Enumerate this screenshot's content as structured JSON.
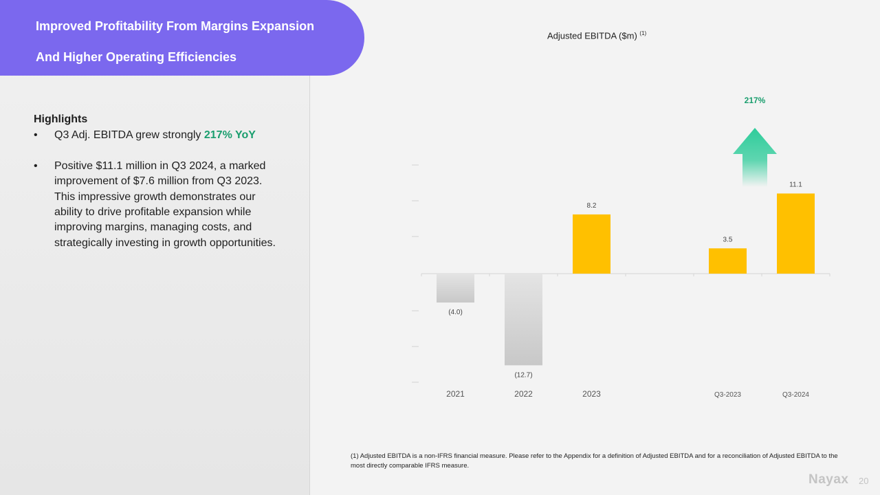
{
  "slide": {
    "title_line1": "Improved Profitability From Margins Expansion",
    "title_line2": "And Higher Operating Efficiencies",
    "highlights_heading": "Highlights",
    "bullet_symbol": "•",
    "bullet1_text": "Q3 Adj. EBITDA grew strongly ",
    "bullet1_emphasis": "217% YoY",
    "bullet2_text": "Positive $11.1 million in Q3 2024, a marked improvement of $7.6 million from Q3 2023. This impressive growth demonstrates our ability to drive profitable expansion while improving margins, managing costs, and strategically investing in growth opportunities.",
    "footnote": "(1) Adjusted EBITDA is a non-IFRS financial measure. Please refer to the Appendix for a definition of Adjusted EBITDA and for a reconciliation of Adjusted EBITDA to the most directly comparable IFRS measure.",
    "brand": "Nayax",
    "page_number": "20"
  },
  "chart_data": {
    "type": "bar",
    "title": "Adjusted EBITDA ($m)",
    "title_superscript": "(1)",
    "categories": [
      "2021",
      "2022",
      "2023",
      "",
      "Q3-2023",
      "Q3-2024"
    ],
    "values": [
      -4.0,
      -12.7,
      8.2,
      null,
      3.5,
      11.1
    ],
    "data_labels": [
      "(4.0)",
      "(12.7)",
      "8.2",
      "",
      "3.5",
      "11.1"
    ],
    "ylim": [
      -15,
      15
    ],
    "growth_annotation": "217%",
    "colors": {
      "positive": "#ffc000",
      "negative_top": "#e4e4e4",
      "negative_bottom": "#c8c8c8",
      "arrow": "#2ecc9a",
      "growth_text": "#1a9e6e"
    }
  }
}
